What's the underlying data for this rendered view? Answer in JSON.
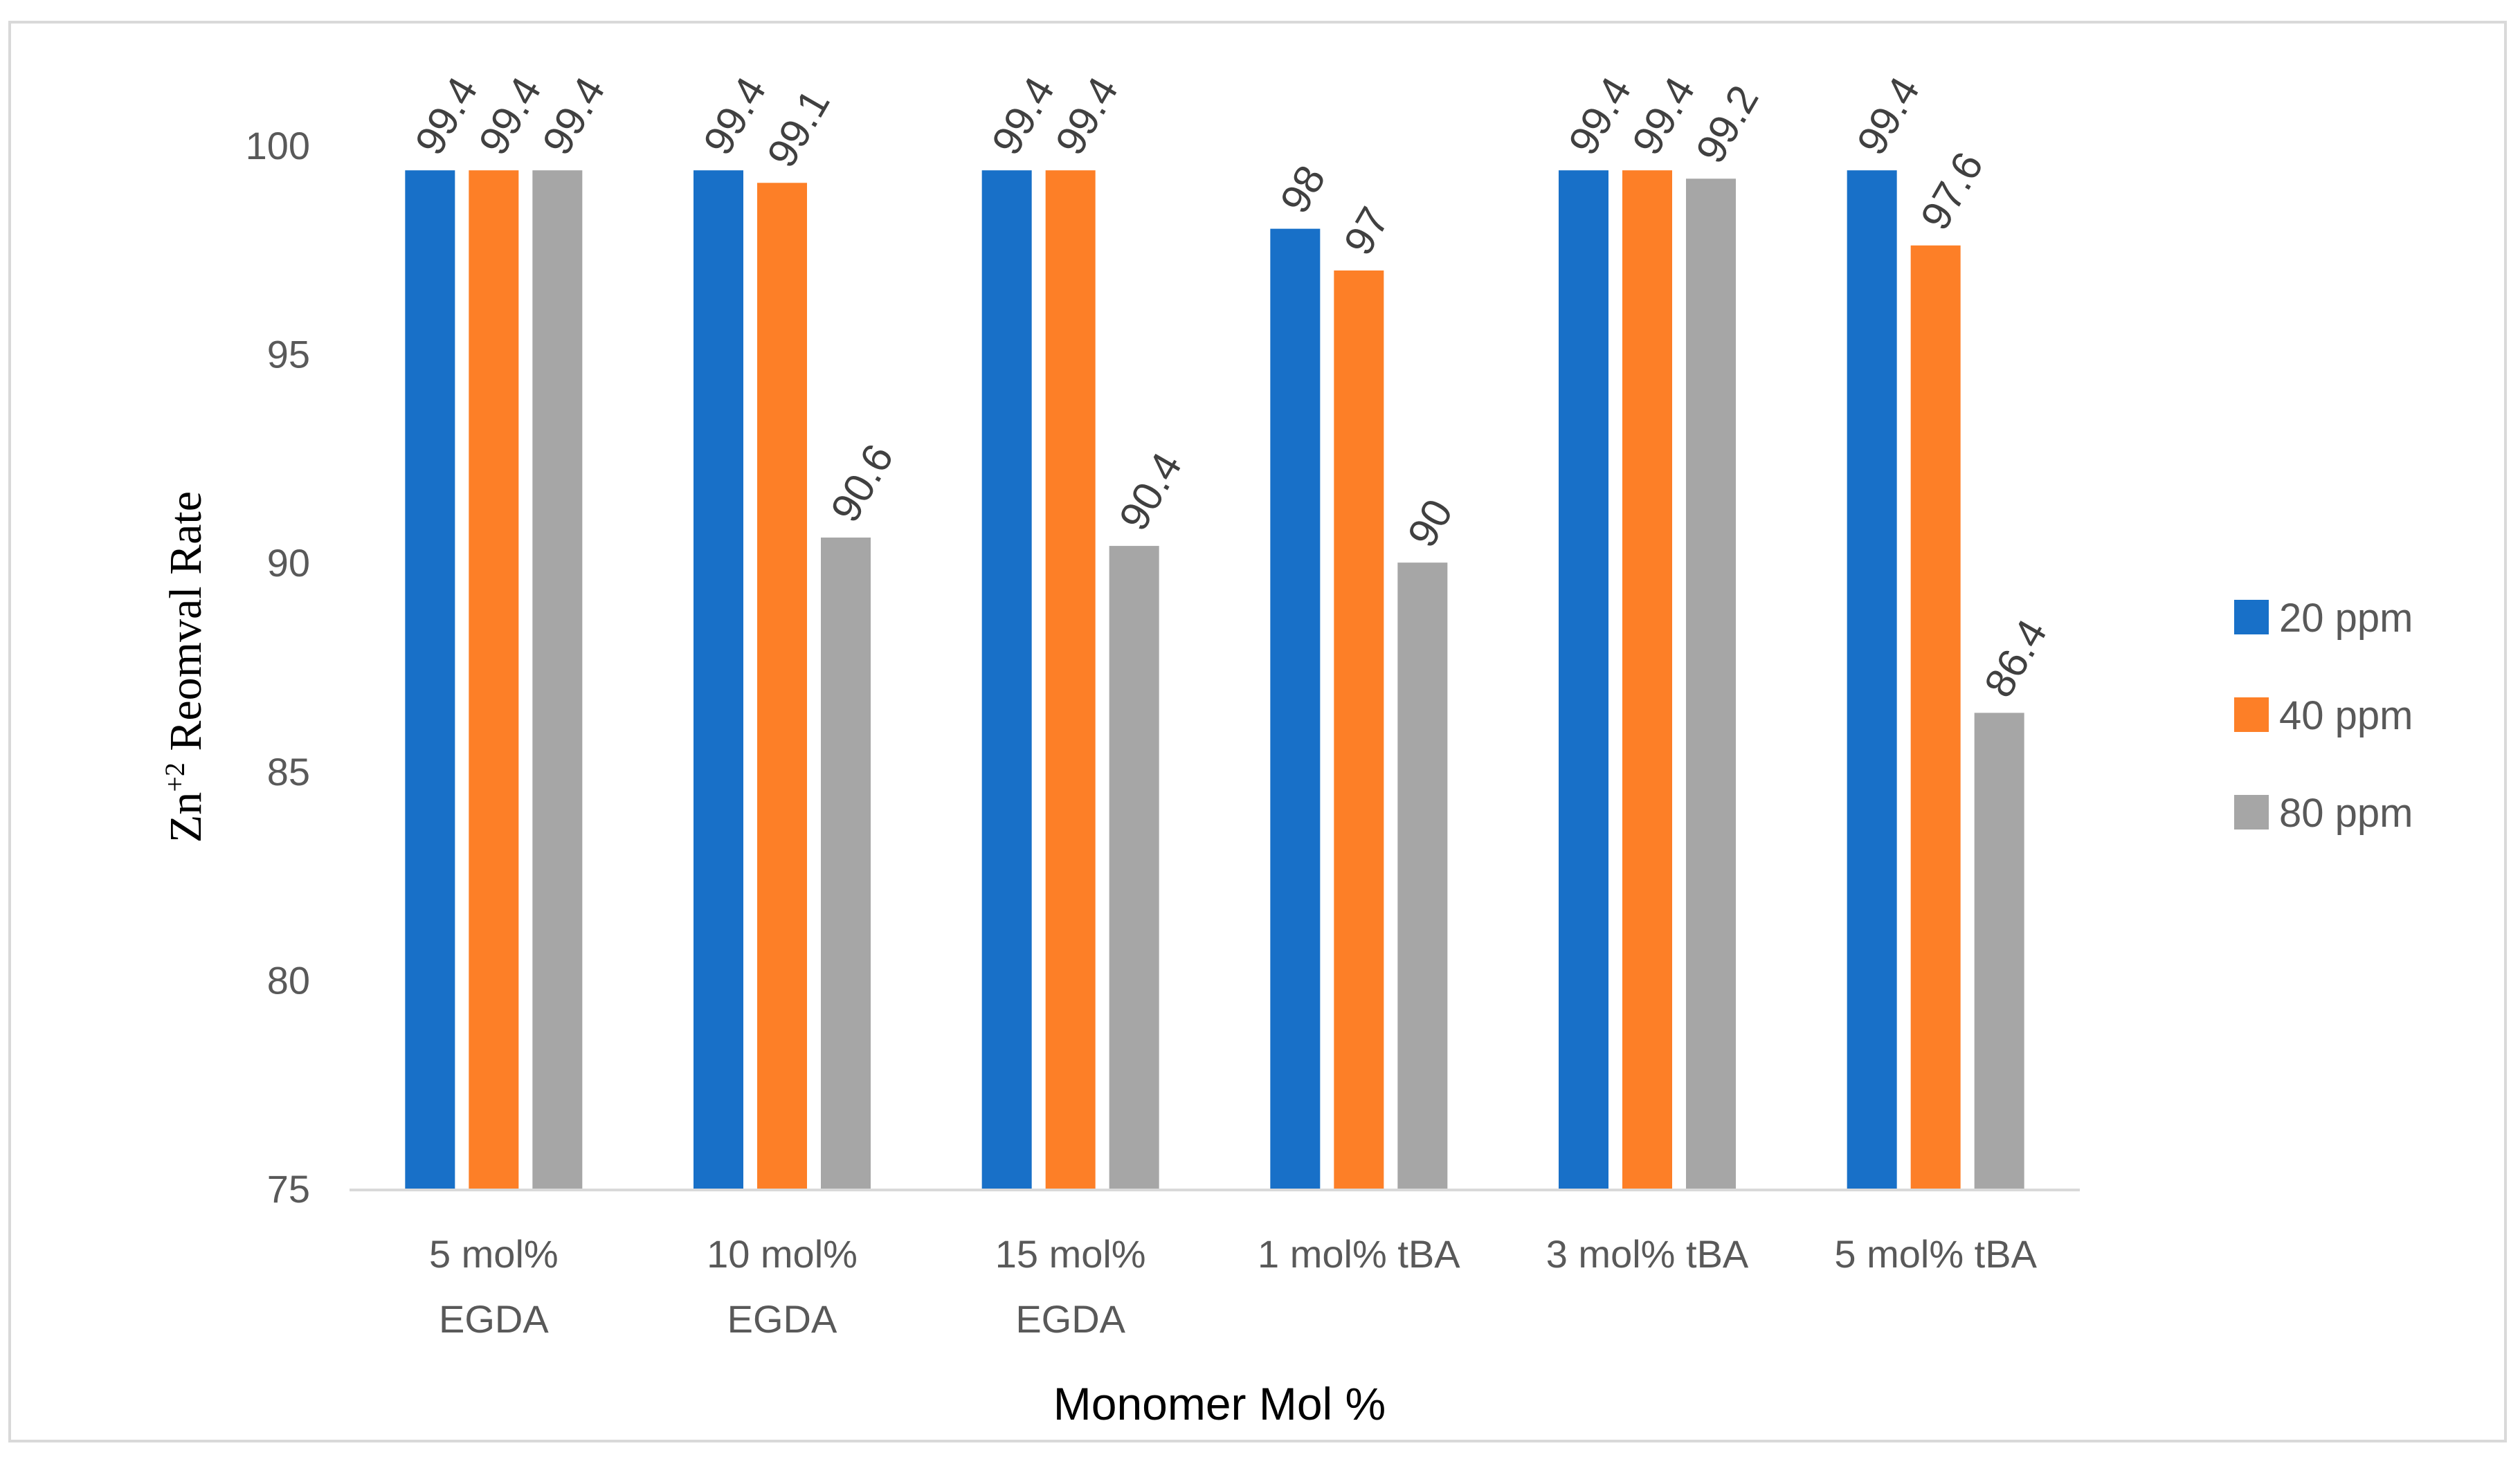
{
  "chart_data": {
    "type": "bar",
    "xlabel": "Monomer Mol %",
    "ylabel": {
      "prefix": "Zn",
      "superscript": "+2",
      "suffix": " Reomval Rate"
    },
    "ylim": [
      75,
      100
    ],
    "yticks": [
      75,
      80,
      85,
      90,
      95,
      100
    ],
    "grid": false,
    "legend_position": "right",
    "categories": [
      [
        "5 mol%",
        "EGDA"
      ],
      [
        "10 mol%",
        "EGDA"
      ],
      [
        "15 mol%",
        "EGDA"
      ],
      [
        "1 mol% tBA"
      ],
      [
        "3 mol% tBA"
      ],
      [
        "5 mol% tBA"
      ]
    ],
    "series": [
      {
        "name": "20 ppm",
        "color": "#1870c8",
        "values": [
          99.4,
          99.4,
          99.4,
          98,
          99.4,
          99.4
        ],
        "labels": [
          "99.4",
          "99.4",
          "99.4",
          "98",
          "99.4",
          "99.4"
        ]
      },
      {
        "name": "40 ppm",
        "color": "#fd7f27",
        "values": [
          99.4,
          99.1,
          99.4,
          97,
          99.4,
          97.6
        ],
        "labels": [
          "99.4",
          "99.1",
          "99.4",
          "97",
          "99.4",
          "97.6"
        ]
      },
      {
        "name": "80 ppm",
        "color": "#a6a6a6",
        "values": [
          99.4,
          90.6,
          90.4,
          90,
          99.2,
          86.4
        ],
        "labels": [
          "99.4",
          "90.6",
          "90.4",
          "90",
          "99.2",
          "86.4"
        ]
      }
    ]
  }
}
